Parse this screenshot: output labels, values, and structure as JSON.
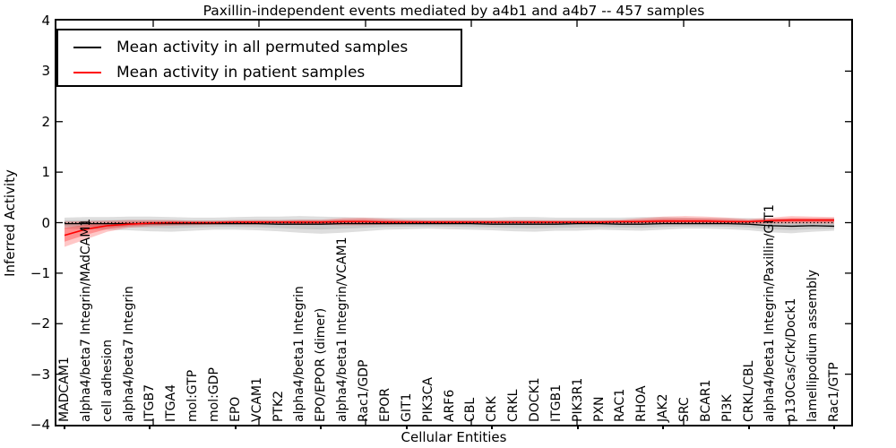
{
  "legend": {
    "items": [
      {
        "label": "Mean activity in all permuted samples",
        "color": "#000000"
      },
      {
        "label": "Mean activity in patient samples",
        "color": "#ff0000"
      }
    ]
  },
  "chart_data": {
    "type": "line",
    "title": "Paxillin-independent events mediated by a4b1 and a4b7 -- 457 samples",
    "xlabel": "Cellular Entities",
    "ylabel": "Inferred Activity",
    "ylim": [
      -4,
      4
    ],
    "yticks": [
      -4,
      -3,
      -2,
      -1,
      0,
      1,
      2,
      3,
      4
    ],
    "ytick_labels": [
      "−4",
      "−3",
      "−2",
      "−1",
      "0",
      "1",
      "2",
      "3",
      "4"
    ],
    "grid": false,
    "legend_position": "upper left",
    "zero_line_style": "dotted",
    "colors": {
      "permuted": "#000000",
      "patient": "#ff0000",
      "permuted_band": "rgba(0,0,0,0.13)",
      "patient_band": "rgba(255,0,0,0.22)"
    },
    "categories": [
      "MADCAM1",
      "alpha4/beta7 Integrin/MAdCAM1",
      "cell adhesion",
      "alpha4/beta7 Integrin",
      "ITGB7",
      "ITGA4",
      "mol:GTP",
      "mol:GDP",
      "EPO",
      "VCAM1",
      "PTK2",
      "alpha4/beta1 Integrin",
      "EPO/EPOR (dimer)",
      "alpha4/beta1 Integrin/VCAM1",
      "Rac1/GDP",
      "EPOR",
      "GIT1",
      "PIK3CA",
      "ARF6",
      "CBL",
      "CRK",
      "CRKL",
      "DOCK1",
      "ITGB1",
      "PIK3R1",
      "PXN",
      "RAC1",
      "RHOA",
      "JAK2",
      "SRC",
      "BCAR1",
      "PI3K",
      "CRKL/CBL",
      "alpha4/beta1 Integrin/Paxillin/GIT1",
      "p130Cas/Crk/Dock1",
      "lamellipodium assembly",
      "Rac1/GTP"
    ],
    "series": [
      {
        "name": "Mean activity in all permuted samples",
        "color": "#000000",
        "values": [
          -0.02,
          -0.02,
          -0.02,
          -0.02,
          -0.02,
          -0.02,
          -0.02,
          -0.02,
          -0.02,
          -0.02,
          -0.03,
          -0.03,
          -0.03,
          -0.02,
          -0.02,
          -0.02,
          -0.02,
          -0.02,
          -0.02,
          -0.02,
          -0.03,
          -0.03,
          -0.03,
          -0.03,
          -0.02,
          -0.02,
          -0.03,
          -0.03,
          -0.02,
          -0.02,
          -0.02,
          -0.02,
          -0.03,
          -0.06,
          -0.07,
          -0.06,
          -0.07
        ],
        "band": {
          "fill": "rgba(0,0,0,0.13)",
          "upper": [
            0.1,
            0.11,
            0.11,
            0.12,
            0.12,
            0.11,
            0.1,
            0.1,
            0.11,
            0.12,
            0.12,
            0.13,
            0.12,
            0.11,
            0.1,
            0.1,
            0.1,
            0.1,
            0.1,
            0.1,
            0.1,
            0.11,
            0.11,
            0.1,
            0.1,
            0.1,
            0.1,
            0.11,
            0.11,
            0.1,
            0.09,
            0.09,
            0.09,
            0.08,
            0.08,
            0.08,
            0.09
          ],
          "lower": [
            -0.12,
            -0.13,
            -0.14,
            -0.15,
            -0.17,
            -0.18,
            -0.16,
            -0.14,
            -0.14,
            -0.15,
            -0.17,
            -0.2,
            -0.22,
            -0.2,
            -0.17,
            -0.14,
            -0.13,
            -0.12,
            -0.13,
            -0.14,
            -0.15,
            -0.17,
            -0.18,
            -0.16,
            -0.16,
            -0.14,
            -0.15,
            -0.16,
            -0.14,
            -0.12,
            -0.12,
            -0.13,
            -0.15,
            -0.19,
            -0.21,
            -0.18,
            -0.16
          ]
        }
      },
      {
        "name": "Mean activity in patient samples",
        "color": "#ff0000",
        "values": [
          -0.25,
          -0.13,
          -0.06,
          -0.03,
          -0.01,
          0.0,
          0.0,
          0.0,
          0.01,
          0.01,
          0.01,
          0.01,
          0.01,
          0.02,
          0.02,
          0.01,
          0.01,
          0.01,
          0.01,
          0.01,
          0.01,
          0.01,
          0.01,
          0.01,
          0.01,
          0.01,
          0.02,
          0.02,
          0.03,
          0.03,
          0.03,
          0.02,
          0.02,
          0.04,
          0.05,
          0.05,
          0.05
        ],
        "band": {
          "fill": "rgba(255,0,0,0.22)",
          "upper": [
            0.02,
            0.03,
            0.04,
            0.05,
            0.05,
            0.05,
            0.04,
            0.04,
            0.05,
            0.05,
            0.05,
            0.06,
            0.06,
            0.09,
            0.1,
            0.08,
            0.06,
            0.05,
            0.05,
            0.05,
            0.05,
            0.05,
            0.05,
            0.05,
            0.05,
            0.05,
            0.06,
            0.09,
            0.12,
            0.13,
            0.12,
            0.1,
            0.07,
            0.1,
            0.13,
            0.12,
            0.11
          ],
          "lower": [
            -0.48,
            -0.33,
            -0.18,
            -0.1,
            -0.07,
            -0.06,
            -0.05,
            -0.04,
            -0.04,
            -0.04,
            -0.03,
            -0.04,
            -0.04,
            -0.05,
            -0.05,
            -0.04,
            -0.03,
            -0.03,
            -0.03,
            -0.03,
            -0.03,
            -0.03,
            -0.03,
            -0.03,
            -0.03,
            -0.03,
            -0.03,
            -0.03,
            -0.03,
            -0.03,
            -0.03,
            -0.03,
            -0.03,
            -0.02,
            -0.02,
            -0.02,
            -0.02
          ]
        }
      }
    ]
  }
}
